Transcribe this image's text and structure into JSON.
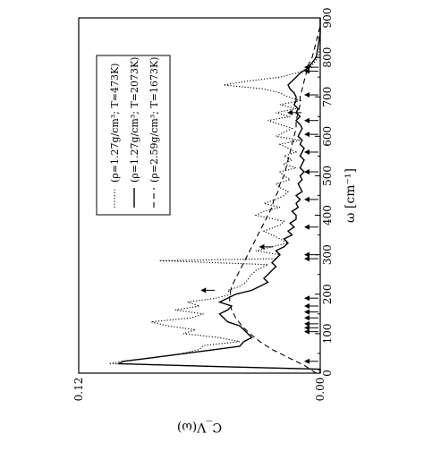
{
  "chart_data": {
    "type": "line",
    "orientation": "rotated 90 degrees counter-clockwise; the omega axis runs upward along the right edge",
    "xlabel": "ω [cm⁻¹]",
    "ylabel": "C_V(ω)",
    "xlim": [
      0,
      900
    ],
    "ylim": [
      0.0,
      0.12
    ],
    "x_ticks": [
      0,
      100,
      200,
      300,
      400,
      500,
      600,
      700,
      800,
      900
    ],
    "y_tick_labels": [
      "0.00",
      "0.12"
    ],
    "legend_position": "top-left",
    "series": [
      {
        "name": "(ρ=1.27g/cm³; T=473K)",
        "style": "dotted",
        "points": [
          [
            0,
            0.0
          ],
          [
            10,
            0.001
          ],
          [
            18,
            0.06
          ],
          [
            24,
            0.105
          ],
          [
            30,
            0.098
          ],
          [
            38,
            0.085
          ],
          [
            48,
            0.07
          ],
          [
            60,
            0.06
          ],
          [
            70,
            0.058
          ],
          [
            80,
            0.04
          ],
          [
            90,
            0.05
          ],
          [
            100,
            0.068
          ],
          [
            110,
            0.062
          ],
          [
            120,
            0.076
          ],
          [
            130,
            0.084
          ],
          [
            140,
            0.064
          ],
          [
            150,
            0.058
          ],
          [
            160,
            0.072
          ],
          [
            170,
            0.06
          ],
          [
            180,
            0.066
          ],
          [
            190,
            0.052
          ],
          [
            200,
            0.044
          ],
          [
            210,
            0.046
          ],
          [
            220,
            0.04
          ],
          [
            230,
            0.037
          ],
          [
            245,
            0.035
          ],
          [
            260,
            0.032
          ],
          [
            275,
            0.026
          ],
          [
            285,
            0.08
          ],
          [
            290,
            0.022
          ],
          [
            300,
            0.02
          ],
          [
            310,
            0.032
          ],
          [
            320,
            0.024
          ],
          [
            330,
            0.016
          ],
          [
            345,
            0.022
          ],
          [
            360,
            0.028
          ],
          [
            375,
            0.02
          ],
          [
            385,
            0.018
          ],
          [
            400,
            0.032
          ],
          [
            410,
            0.028
          ],
          [
            420,
            0.02
          ],
          [
            430,
            0.028
          ],
          [
            440,
            0.022
          ],
          [
            450,
            0.018
          ],
          [
            460,
            0.016
          ],
          [
            470,
            0.02
          ],
          [
            480,
            0.022
          ],
          [
            490,
            0.015
          ],
          [
            500,
            0.018
          ],
          [
            510,
            0.02
          ],
          [
            520,
            0.012
          ],
          [
            530,
            0.018
          ],
          [
            540,
            0.014
          ],
          [
            550,
            0.018
          ],
          [
            560,
            0.012
          ],
          [
            570,
            0.016
          ],
          [
            580,
            0.02
          ],
          [
            590,
            0.01
          ],
          [
            600,
            0.022
          ],
          [
            610,
            0.018
          ],
          [
            620,
            0.014
          ],
          [
            630,
            0.02
          ],
          [
            640,
            0.026
          ],
          [
            650,
            0.015
          ],
          [
            660,
            0.022
          ],
          [
            670,
            0.012
          ],
          [
            680,
            0.02
          ],
          [
            690,
            0.01
          ],
          [
            700,
            0.016
          ],
          [
            710,
            0.02
          ],
          [
            720,
            0.028
          ],
          [
            730,
            0.048
          ],
          [
            740,
            0.036
          ],
          [
            750,
            0.02
          ],
          [
            760,
            0.012
          ],
          [
            770,
            0.006
          ],
          [
            780,
            0.004
          ],
          [
            800,
            0.001
          ],
          [
            830,
            0.0
          ],
          [
            900,
            0.0
          ]
        ]
      },
      {
        "name": "(ρ=1.27g/cm³; T=2073K)",
        "style": "solid",
        "points": [
          [
            0,
            0.0
          ],
          [
            10,
            0.0
          ],
          [
            18,
            0.06
          ],
          [
            24,
            0.1
          ],
          [
            30,
            0.098
          ],
          [
            38,
            0.085
          ],
          [
            48,
            0.07
          ],
          [
            58,
            0.055
          ],
          [
            68,
            0.04
          ],
          [
            80,
            0.038
          ],
          [
            90,
            0.034
          ],
          [
            100,
            0.036
          ],
          [
            110,
            0.038
          ],
          [
            120,
            0.04
          ],
          [
            130,
            0.046
          ],
          [
            140,
            0.048
          ],
          [
            150,
            0.05
          ],
          [
            160,
            0.046
          ],
          [
            170,
            0.044
          ],
          [
            180,
            0.05
          ],
          [
            190,
            0.046
          ],
          [
            200,
            0.042
          ],
          [
            210,
            0.034
          ],
          [
            220,
            0.03
          ],
          [
            230,
            0.026
          ],
          [
            240,
            0.028
          ],
          [
            250,
            0.026
          ],
          [
            260,
            0.024
          ],
          [
            270,
            0.022
          ],
          [
            280,
            0.024
          ],
          [
            290,
            0.022
          ],
          [
            300,
            0.02
          ],
          [
            310,
            0.022
          ],
          [
            320,
            0.018
          ],
          [
            330,
            0.016
          ],
          [
            340,
            0.018
          ],
          [
            350,
            0.014
          ],
          [
            360,
            0.016
          ],
          [
            370,
            0.013
          ],
          [
            380,
            0.015
          ],
          [
            390,
            0.012
          ],
          [
            400,
            0.012
          ],
          [
            410,
            0.014
          ],
          [
            420,
            0.011
          ],
          [
            430,
            0.012
          ],
          [
            440,
            0.01
          ],
          [
            450,
            0.012
          ],
          [
            460,
            0.009
          ],
          [
            470,
            0.01
          ],
          [
            480,
            0.011
          ],
          [
            490,
            0.009
          ],
          [
            500,
            0.01
          ],
          [
            510,
            0.008
          ],
          [
            520,
            0.01
          ],
          [
            530,
            0.009
          ],
          [
            540,
            0.008
          ],
          [
            550,
            0.01
          ],
          [
            560,
            0.009
          ],
          [
            570,
            0.008
          ],
          [
            580,
            0.01
          ],
          [
            590,
            0.009
          ],
          [
            600,
            0.011
          ],
          [
            610,
            0.01
          ],
          [
            620,
            0.009
          ],
          [
            630,
            0.01
          ],
          [
            640,
            0.012
          ],
          [
            650,
            0.01
          ],
          [
            660,
            0.012
          ],
          [
            670,
            0.011
          ],
          [
            680,
            0.013
          ],
          [
            690,
            0.012
          ],
          [
            700,
            0.012
          ],
          [
            710,
            0.013
          ],
          [
            720,
            0.015
          ],
          [
            730,
            0.016
          ],
          [
            740,
            0.014
          ],
          [
            750,
            0.012
          ],
          [
            760,
            0.01
          ],
          [
            770,
            0.007
          ],
          [
            780,
            0.005
          ],
          [
            800,
            0.002
          ],
          [
            830,
            0.001
          ],
          [
            860,
            0.0
          ],
          [
            900,
            0.0
          ]
        ]
      },
      {
        "name": "(ρ=2.59g/cm³; T=1673K)",
        "style": "dashed",
        "points": [
          [
            0,
            0.002
          ],
          [
            20,
            0.008
          ],
          [
            40,
            0.016
          ],
          [
            60,
            0.024
          ],
          [
            80,
            0.03
          ],
          [
            100,
            0.035
          ],
          [
            120,
            0.039
          ],
          [
            140,
            0.042
          ],
          [
            160,
            0.044
          ],
          [
            180,
            0.045
          ],
          [
            200,
            0.045
          ],
          [
            220,
            0.044
          ],
          [
            240,
            0.042
          ],
          [
            260,
            0.04
          ],
          [
            280,
            0.038
          ],
          [
            300,
            0.036
          ],
          [
            320,
            0.034
          ],
          [
            340,
            0.032
          ],
          [
            360,
            0.03
          ],
          [
            380,
            0.028
          ],
          [
            400,
            0.026
          ],
          [
            420,
            0.024
          ],
          [
            440,
            0.023
          ],
          [
            460,
            0.021
          ],
          [
            480,
            0.02
          ],
          [
            500,
            0.018
          ],
          [
            520,
            0.017
          ],
          [
            540,
            0.016
          ],
          [
            560,
            0.015
          ],
          [
            580,
            0.014
          ],
          [
            600,
            0.013
          ],
          [
            620,
            0.012
          ],
          [
            640,
            0.012
          ],
          [
            660,
            0.011
          ],
          [
            680,
            0.01
          ],
          [
            700,
            0.01
          ],
          [
            720,
            0.009
          ],
          [
            740,
            0.008
          ],
          [
            760,
            0.007
          ],
          [
            780,
            0.006
          ],
          [
            800,
            0.004
          ],
          [
            820,
            0.003
          ],
          [
            840,
            0.002
          ],
          [
            860,
            0.001
          ],
          [
            880,
            0.0
          ],
          [
            900,
            0.0
          ]
        ]
      }
    ],
    "arrows_bottom_x": [
      30,
      105,
      115,
      125,
      140,
      155,
      170,
      190,
      290,
      300,
      370,
      440,
      510,
      560,
      605,
      640,
      705,
      765,
      775
    ],
    "arrows_near_curve": [
      [
        210,
        0.055
      ],
      [
        320,
        0.026
      ],
      [
        660,
        0.012
      ]
    ]
  }
}
